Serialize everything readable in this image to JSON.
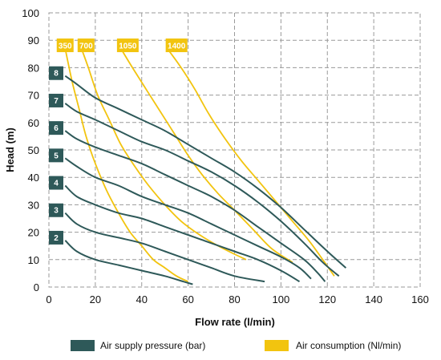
{
  "chart_data": {
    "type": "line",
    "title": "",
    "xlabel": "Flow rate (l/min)",
    "ylabel": "Head (m)",
    "xlim": [
      0,
      160
    ],
    "ylim": [
      0,
      100
    ],
    "x_ticks": [
      "0",
      "20",
      "40",
      "60",
      "80",
      "100",
      "120",
      "140",
      "160"
    ],
    "y_ticks": [
      "0",
      "10",
      "20",
      "30",
      "40",
      "50",
      "60",
      "70",
      "80",
      "90",
      "100"
    ],
    "grid": true,
    "colors": {
      "pressure": "#2e5959",
      "consumption": "#f2c40f",
      "grid": "#9a9a9a"
    },
    "pressure_series": [
      {
        "name": "2",
        "label_y": 18,
        "points": [
          [
            7,
            17
          ],
          [
            12,
            13
          ],
          [
            20,
            10
          ],
          [
            30,
            8
          ],
          [
            40,
            6
          ],
          [
            50,
            4
          ],
          [
            58,
            2
          ],
          [
            62,
            1
          ]
        ]
      },
      {
        "name": "3",
        "label_y": 28,
        "points": [
          [
            7,
            27
          ],
          [
            12,
            23
          ],
          [
            20,
            20
          ],
          [
            30,
            18
          ],
          [
            40,
            16
          ],
          [
            50,
            13
          ],
          [
            60,
            10
          ],
          [
            70,
            7
          ],
          [
            80,
            4
          ],
          [
            93,
            2
          ]
        ]
      },
      {
        "name": "4",
        "label_y": 38,
        "points": [
          [
            7,
            37
          ],
          [
            12,
            33
          ],
          [
            20,
            30
          ],
          [
            30,
            27
          ],
          [
            40,
            25
          ],
          [
            50,
            22
          ],
          [
            60,
            19
          ],
          [
            70,
            16
          ],
          [
            80,
            13
          ],
          [
            90,
            10
          ],
          [
            100,
            6
          ],
          [
            108,
            2
          ]
        ]
      },
      {
        "name": "5",
        "label_y": 48,
        "points": [
          [
            7,
            47
          ],
          [
            12,
            44
          ],
          [
            20,
            40
          ],
          [
            30,
            37
          ],
          [
            40,
            33
          ],
          [
            50,
            30
          ],
          [
            60,
            27
          ],
          [
            70,
            23
          ],
          [
            80,
            19
          ],
          [
            90,
            15
          ],
          [
            100,
            11
          ],
          [
            108,
            7
          ],
          [
            113,
            3
          ]
        ]
      },
      {
        "name": "6",
        "label_y": 58,
        "points": [
          [
            7,
            57
          ],
          [
            12,
            54
          ],
          [
            20,
            51
          ],
          [
            30,
            48
          ],
          [
            40,
            45
          ],
          [
            50,
            41
          ],
          [
            60,
            37
          ],
          [
            70,
            33
          ],
          [
            80,
            28
          ],
          [
            90,
            22
          ],
          [
            100,
            16
          ],
          [
            110,
            10
          ],
          [
            116,
            5
          ],
          [
            119,
            2
          ]
        ]
      },
      {
        "name": "7",
        "label_y": 68,
        "points": [
          [
            7,
            67
          ],
          [
            12,
            64
          ],
          [
            20,
            61
          ],
          [
            30,
            57
          ],
          [
            40,
            53
          ],
          [
            50,
            50
          ],
          [
            60,
            46
          ],
          [
            70,
            42
          ],
          [
            80,
            37
          ],
          [
            90,
            31
          ],
          [
            100,
            24
          ],
          [
            110,
            16
          ],
          [
            118,
            9
          ],
          [
            125,
            4
          ]
        ]
      },
      {
        "name": "8",
        "label_y": 78,
        "points": [
          [
            7,
            77
          ],
          [
            12,
            74
          ],
          [
            20,
            69
          ],
          [
            30,
            65
          ],
          [
            40,
            61
          ],
          [
            50,
            57
          ],
          [
            60,
            52
          ],
          [
            70,
            47
          ],
          [
            80,
            42
          ],
          [
            90,
            36
          ],
          [
            100,
            29
          ],
          [
            110,
            21
          ],
          [
            120,
            13
          ],
          [
            128,
            7
          ]
        ]
      }
    ],
    "consumption_series": [
      {
        "name": "350",
        "label_x": 7,
        "points": [
          [
            7,
            87
          ],
          [
            10,
            75
          ],
          [
            13,
            65
          ],
          [
            16,
            55
          ],
          [
            20,
            45
          ],
          [
            25,
            35
          ],
          [
            30,
            27
          ],
          [
            35,
            20
          ],
          [
            40,
            15
          ],
          [
            45,
            10
          ],
          [
            50,
            7
          ],
          [
            55,
            4
          ],
          [
            60,
            2
          ]
        ]
      },
      {
        "name": "700",
        "label_x": 16,
        "points": [
          [
            14,
            87
          ],
          [
            17,
            80
          ],
          [
            21,
            70
          ],
          [
            26,
            61
          ],
          [
            31,
            52
          ],
          [
            37,
            44
          ],
          [
            43,
            37
          ],
          [
            50,
            30
          ],
          [
            57,
            24
          ],
          [
            65,
            19
          ],
          [
            73,
            15
          ],
          [
            80,
            12
          ],
          [
            85,
            10
          ]
        ]
      },
      {
        "name": "1050",
        "label_x": 34,
        "points": [
          [
            31,
            87
          ],
          [
            36,
            80
          ],
          [
            42,
            72
          ],
          [
            48,
            64
          ],
          [
            54,
            56
          ],
          [
            60,
            48
          ],
          [
            66,
            41
          ],
          [
            73,
            34
          ],
          [
            80,
            28
          ],
          [
            88,
            21
          ],
          [
            96,
            14
          ],
          [
            105,
            9
          ]
        ]
      },
      {
        "name": "1400",
        "label_x": 55,
        "points": [
          [
            51,
            87
          ],
          [
            57,
            80
          ],
          [
            63,
            72
          ],
          [
            69,
            63
          ],
          [
            76,
            54
          ],
          [
            83,
            46
          ],
          [
            90,
            39
          ],
          [
            98,
            31
          ],
          [
            105,
            24
          ],
          [
            112,
            17
          ],
          [
            118,
            10
          ],
          [
            123,
            4
          ]
        ]
      }
    ]
  },
  "legend": {
    "pressure_label": "Air supply pressure (bar)",
    "consumption_label": "Air consumption (Nl/min)"
  }
}
